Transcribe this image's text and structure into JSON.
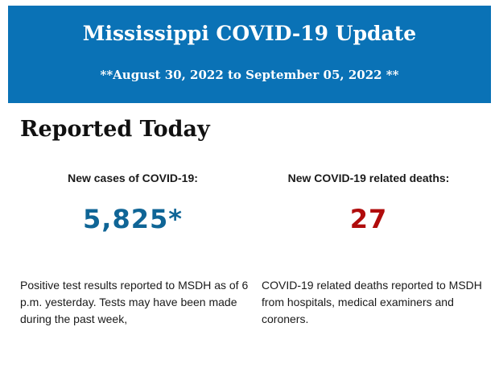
{
  "banner": {
    "title": "Mississippi COVID-19 Update",
    "dates": "**August 30, 2022 to September 05, 2022 **",
    "background_color": "#0a72b6"
  },
  "section": {
    "title": "Reported Today"
  },
  "cases": {
    "label": "New cases of COVID-19:",
    "value": "5,825*",
    "value_color": "#0f6596",
    "description": "Positive test results reported to MSDH as of 6 p.m. yesterday. Tests may have been made during the past week,"
  },
  "deaths": {
    "label": "New COVID-19 related deaths:",
    "value": "27",
    "value_color": "#b00c0c",
    "description": "COVID-19 related deaths reported to MSDH from hospitals, medical examiners and coroners."
  }
}
